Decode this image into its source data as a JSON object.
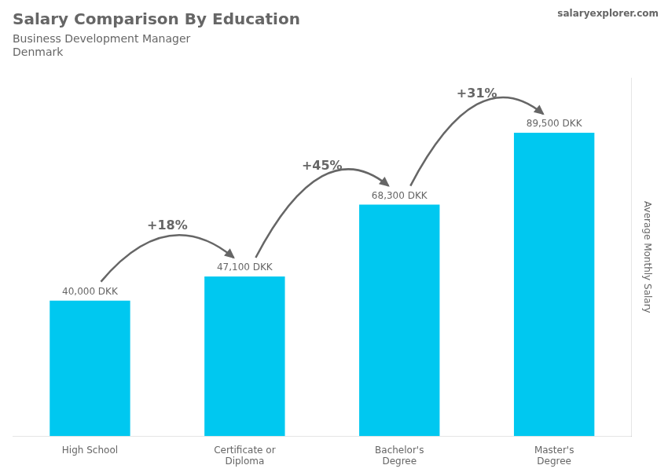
{
  "chart_data": {
    "type": "bar",
    "title": "Salary Comparison By Education",
    "subtitle": [
      "Business Development Manager",
      "Denmark"
    ],
    "source": "salaryexplorer.com",
    "y_label": "Average Monthly Salary",
    "categories": [
      "High School",
      "Certificate or\nDiploma",
      "Bachelor's\nDegree",
      "Master's\nDegree"
    ],
    "values": [
      40000,
      47100,
      68300,
      89500
    ],
    "value_labels": [
      "40,000 DKK",
      "47,100 DKK",
      "68,300 DKK",
      "89,500 DKK"
    ],
    "data_labels": true,
    "color": "#00c8f0",
    "annotations": [
      {
        "text": "+18%",
        "from": 0,
        "to": 1
      },
      {
        "text": "+45%",
        "from": 1,
        "to": 2
      },
      {
        "text": "+31%",
        "from": 2,
        "to": 3
      }
    ],
    "ylim": [
      0,
      105610
    ],
    "yticks": [],
    "tick_labels": "x",
    "grid": false
  }
}
